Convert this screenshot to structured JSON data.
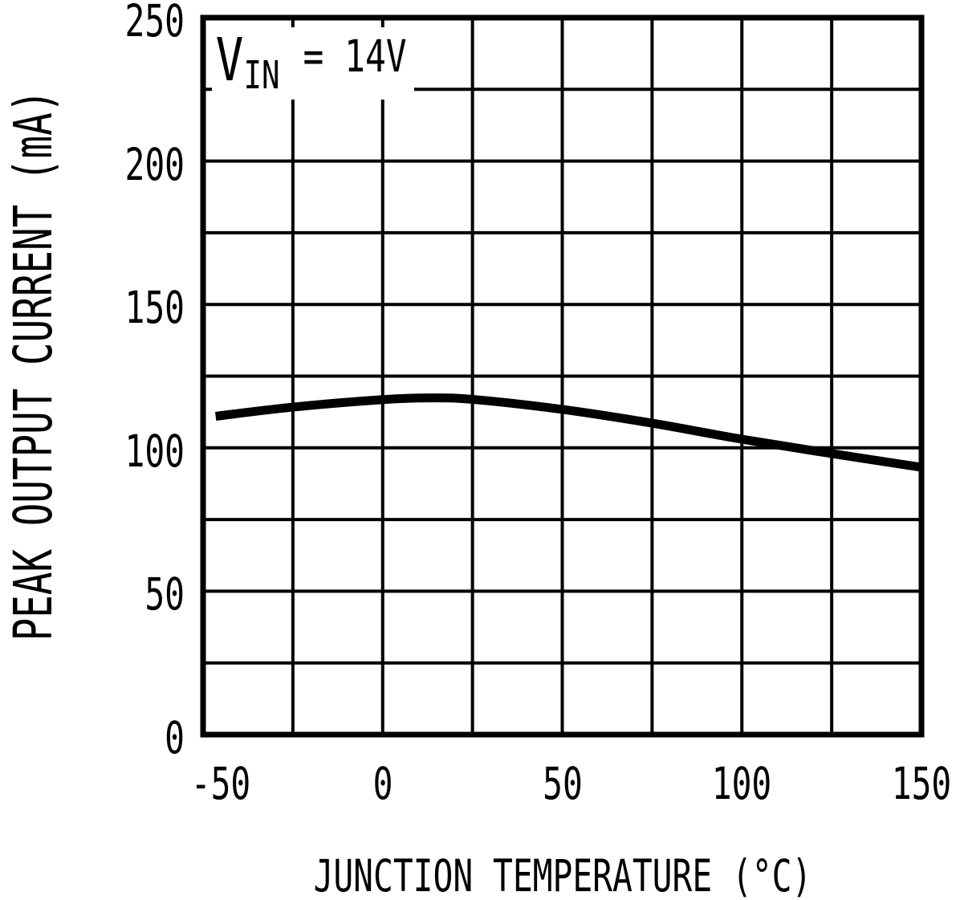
{
  "figure": {
    "background_color": "#ffffff",
    "ink_color": "#000000"
  },
  "chart_data": {
    "type": "line",
    "title": "",
    "xlabel": "JUNCTION TEMPERATURE (°C)",
    "ylabel": "PEAK OUTPUT CURRENT (mA)",
    "annotation": {
      "variable": "V",
      "subscript": "IN",
      "equals_value": " = 14V"
    },
    "xlim": [
      -50,
      150
    ],
    "ylim": [
      0,
      250
    ],
    "x_grid_step": 25,
    "y_grid_step": 25,
    "grid": true,
    "legend": "none",
    "x_tick_values": [
      -50,
      0,
      50,
      100,
      150
    ],
    "x_tick_labels": [
      "-50",
      "0",
      "50",
      "100",
      "150"
    ],
    "y_tick_values": [
      0,
      50,
      100,
      150,
      200,
      250
    ],
    "y_tick_labels": [
      "0",
      "50",
      "100",
      "150",
      "200",
      "250"
    ],
    "series": [
      {
        "name": "peak output current vs junction temperature, VIN = 14V",
        "x": [
          -46.5,
          -25,
          0,
          13,
          25,
          50,
          75,
          100,
          125,
          150
        ],
        "y": [
          111,
          114.2,
          116.8,
          117.4,
          116.9,
          113.4,
          108.6,
          103,
          98,
          93.2
        ]
      }
    ],
    "line_color": "#000000"
  }
}
